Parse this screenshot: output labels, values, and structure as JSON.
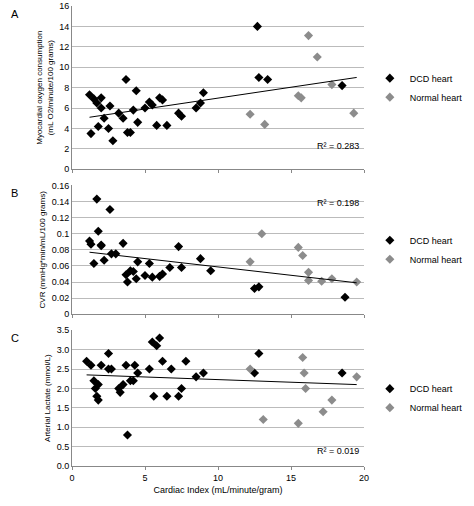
{
  "chart_data": [
    {
      "type": "scatter",
      "title": "A",
      "ylabel": [
        "Myocardial oxygen consumption",
        "(mL O2/minute/100 grams)"
      ],
      "xlim": [
        0,
        20
      ],
      "xticks": [
        0,
        5,
        10,
        15,
        20
      ],
      "ylim": [
        0,
        16
      ],
      "yticks": [
        0,
        2,
        4,
        6,
        8,
        10,
        12,
        14,
        16
      ],
      "grid": true,
      "tick_labels": "y",
      "legend": "right",
      "marker": "diamond",
      "annotations": [
        "R² = 0.283"
      ],
      "trendline": {
        "x": [
          1.2,
          19.5
        ],
        "y": [
          5.1,
          9.0
        ]
      },
      "series": [
        {
          "name": "DCD heart",
          "color": "#000000",
          "x": [
            1.2,
            1.3,
            1.5,
            1.7,
            1.8,
            2.0,
            2.0,
            2.2,
            2.5,
            2.6,
            2.8,
            3.2,
            3.5,
            3.7,
            3.8,
            4.0,
            4.2,
            4.4,
            4.5,
            5.0,
            5.3,
            5.5,
            5.8,
            6.0,
            6.2,
            6.5,
            7.3,
            7.5,
            8.5,
            8.8,
            9.0,
            12.7,
            12.8,
            13.4,
            18.5
          ],
          "values": [
            7.3,
            3.5,
            6.9,
            6.5,
            4.2,
            7.0,
            6.0,
            5.0,
            4.0,
            6.2,
            2.8,
            5.5,
            5.0,
            8.8,
            3.6,
            3.6,
            5.8,
            7.7,
            4.6,
            6.0,
            6.6,
            6.3,
            4.3,
            7.0,
            6.8,
            4.3,
            5.5,
            5.2,
            6.0,
            6.5,
            7.5,
            14.0,
            9.0,
            8.8,
            8.2
          ]
        },
        {
          "name": "Normal heart",
          "color": "#8c8c8c",
          "x": [
            12.2,
            13.2,
            15.5,
            15.7,
            16.2,
            16.8,
            17.8,
            19.3
          ],
          "values": [
            5.4,
            4.4,
            7.2,
            7.0,
            13.1,
            11.0,
            8.3,
            5.5
          ]
        }
      ]
    },
    {
      "type": "scatter",
      "title": "B",
      "ylabel": [
        "CVR (mmHg*min/mL/100 grams)"
      ],
      "xlim": [
        0,
        20
      ],
      "xticks": [
        0,
        5,
        10,
        15,
        20
      ],
      "ylim": [
        0,
        0.16
      ],
      "yticks": [
        0,
        0.02,
        0.04,
        0.06,
        0.08,
        0.1,
        0.12,
        0.14,
        0.16
      ],
      "grid": true,
      "tick_labels": "y",
      "legend": "right",
      "marker": "diamond",
      "annotations": [
        "R² = 0.198"
      ],
      "trendline": {
        "x": [
          1.2,
          19.5
        ],
        "y": [
          0.077,
          0.039
        ]
      },
      "series": [
        {
          "name": "DCD heart",
          "color": "#000000",
          "x": [
            1.2,
            1.3,
            1.5,
            1.7,
            1.8,
            2.0,
            2.0,
            2.2,
            2.6,
            2.7,
            3.0,
            3.5,
            3.7,
            3.8,
            4.0,
            4.2,
            4.4,
            4.5,
            5.0,
            5.3,
            5.5,
            6.0,
            6.2,
            6.7,
            7.3,
            7.5,
            8.8,
            9.5,
            12.5,
            12.8,
            18.7
          ],
          "values": [
            0.091,
            0.087,
            0.063,
            0.143,
            0.103,
            0.086,
            0.085,
            0.067,
            0.13,
            0.075,
            0.075,
            0.088,
            0.049,
            0.04,
            0.054,
            0.053,
            0.044,
            0.065,
            0.048,
            0.063,
            0.046,
            0.047,
            0.05,
            0.058,
            0.084,
            0.058,
            0.069,
            0.054,
            0.032,
            0.034,
            0.021
          ]
        },
        {
          "name": "Normal heart",
          "color": "#8c8c8c",
          "x": [
            12.2,
            13.0,
            15.5,
            15.8,
            16.2,
            16.2,
            17.1,
            17.8,
            19.5
          ],
          "values": [
            0.065,
            0.1,
            0.083,
            0.073,
            0.052,
            0.042,
            0.041,
            0.044,
            0.04
          ]
        }
      ]
    },
    {
      "type": "scatter",
      "title": "C",
      "xlabel": "Cardiac Index (mL/minute/gram)",
      "ylabel": [
        "Arterial Lactate (mmol/L)"
      ],
      "xlim": [
        0,
        20
      ],
      "xticks": [
        0,
        5,
        10,
        15,
        20
      ],
      "ylim": [
        0,
        3.5
      ],
      "yticks": [
        {
          "value": 0,
          "label": "0.0"
        },
        {
          "value": 0.5,
          "label": "0.5"
        },
        {
          "value": 1,
          "label": "1.0"
        },
        {
          "value": 1.5,
          "label": "1.5"
        },
        {
          "value": 2,
          "label": "2.0"
        },
        {
          "value": 2.5,
          "label": "2.5"
        },
        {
          "value": 3,
          "label": "3.0"
        },
        {
          "value": 3.5,
          "label": "3.5"
        }
      ],
      "grid": true,
      "legend": "right",
      "marker": "diamond",
      "annotations": [
        "R² = 0.019"
      ],
      "trendline": {
        "x": [
          1.0,
          19.5
        ],
        "y": [
          2.35,
          2.1
        ]
      },
      "series": [
        {
          "name": "DCD heart",
          "color": "#000000",
          "x": [
            1.0,
            1.3,
            1.5,
            1.6,
            1.7,
            1.8,
            1.8,
            2.0,
            2.5,
            2.5,
            2.7,
            3.2,
            3.3,
            3.5,
            3.7,
            3.8,
            4.0,
            4.2,
            4.3,
            4.5,
            5.3,
            5.5,
            5.6,
            5.8,
            6.0,
            6.2,
            6.5,
            6.8,
            7.3,
            7.5,
            7.8,
            8.5,
            9.0,
            12.5,
            12.8,
            18.5
          ],
          "values": [
            2.7,
            2.6,
            2.2,
            2.0,
            1.8,
            1.7,
            2.1,
            2.6,
            2.9,
            2.5,
            2.5,
            2.0,
            1.9,
            2.1,
            2.6,
            0.8,
            2.2,
            2.2,
            2.6,
            2.4,
            2.5,
            3.2,
            1.8,
            3.1,
            3.3,
            2.7,
            1.8,
            2.5,
            1.8,
            2.0,
            2.7,
            2.3,
            2.4,
            2.4,
            2.9,
            2.4
          ]
        },
        {
          "name": "Normal heart",
          "color": "#8c8c8c",
          "x": [
            12.2,
            13.1,
            15.5,
            15.8,
            15.9,
            16.0,
            17.2,
            17.8,
            19.5
          ],
          "values": [
            2.5,
            1.2,
            1.1,
            2.8,
            2.4,
            2.0,
            1.4,
            1.7,
            2.3
          ]
        }
      ]
    }
  ]
}
